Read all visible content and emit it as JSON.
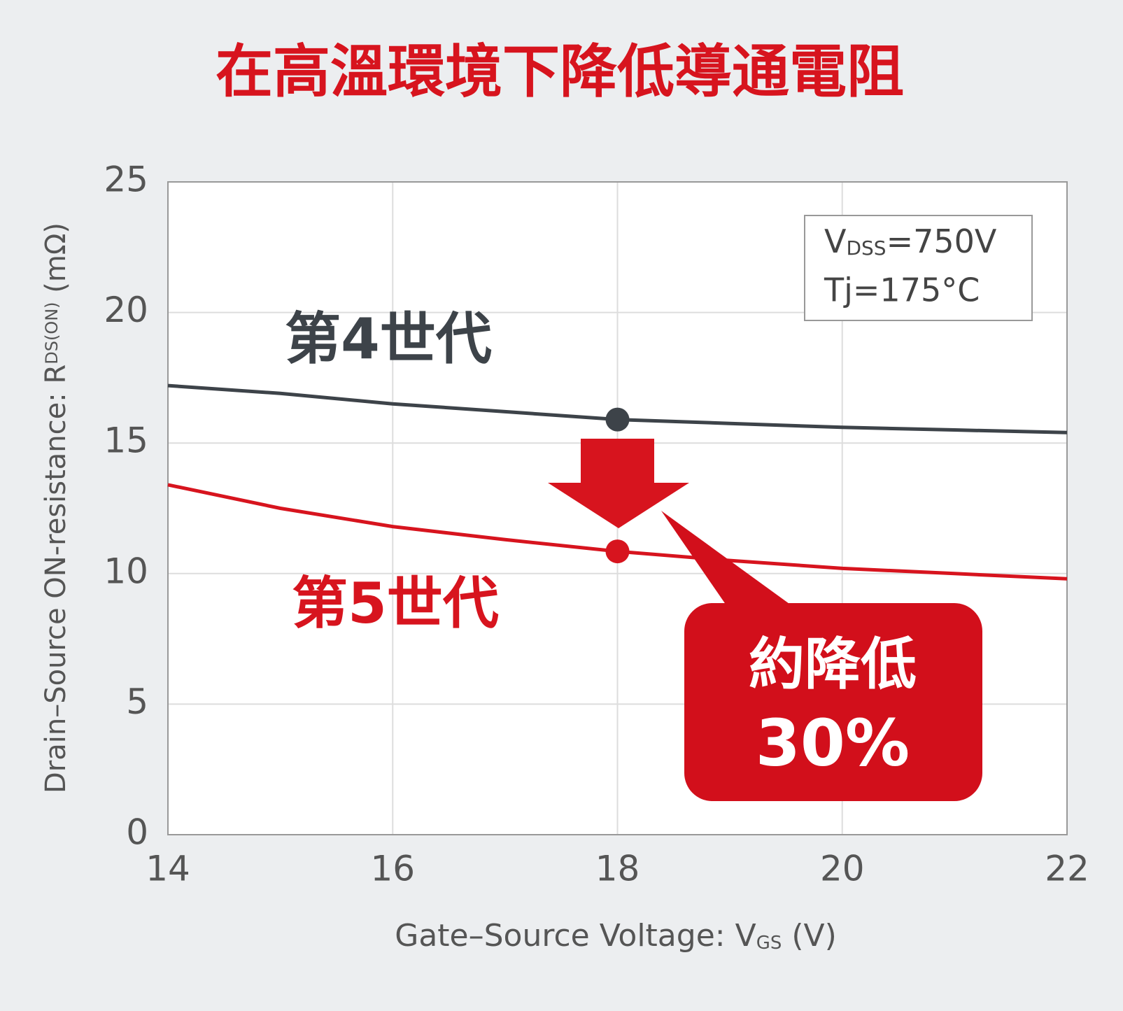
{
  "chart_data": {
    "type": "line",
    "title": "在高溫環境下降低導通電阻",
    "x": [
      14,
      15,
      16,
      17,
      18,
      19,
      20,
      21,
      22
    ],
    "series": [
      {
        "name": "第4世代",
        "color": "#3d4349",
        "values": [
          17.2,
          16.9,
          16.5,
          16.2,
          15.9,
          15.75,
          15.6,
          15.5,
          15.4
        ]
      },
      {
        "name": "第5世代",
        "color": "#d7141e",
        "values": [
          13.4,
          12.5,
          11.8,
          11.3,
          10.85,
          10.5,
          10.2,
          10.0,
          9.8
        ]
      }
    ],
    "highlight_x": 18,
    "xlim": [
      14,
      22
    ],
    "xticks": [
      14,
      16,
      18,
      20,
      22
    ],
    "ylim": [
      0,
      25
    ],
    "yticks": [
      0,
      5,
      10,
      15,
      20,
      25
    ],
    "grid": true,
    "x_label": {
      "text": "Gate–Source Voltage: V",
      "sub": "GS",
      "suffix": " (V)"
    },
    "y_label": {
      "text": "Drain–Source ON-resistance: R",
      "sub": "DS(ON)",
      "suffix": " (mΩ)"
    },
    "conditions": [
      {
        "main": "V",
        "sub": "DSS",
        "rest": "=750V"
      },
      {
        "main": "Tj=175°C"
      }
    ],
    "callout": [
      "約降低",
      "30%"
    ]
  }
}
